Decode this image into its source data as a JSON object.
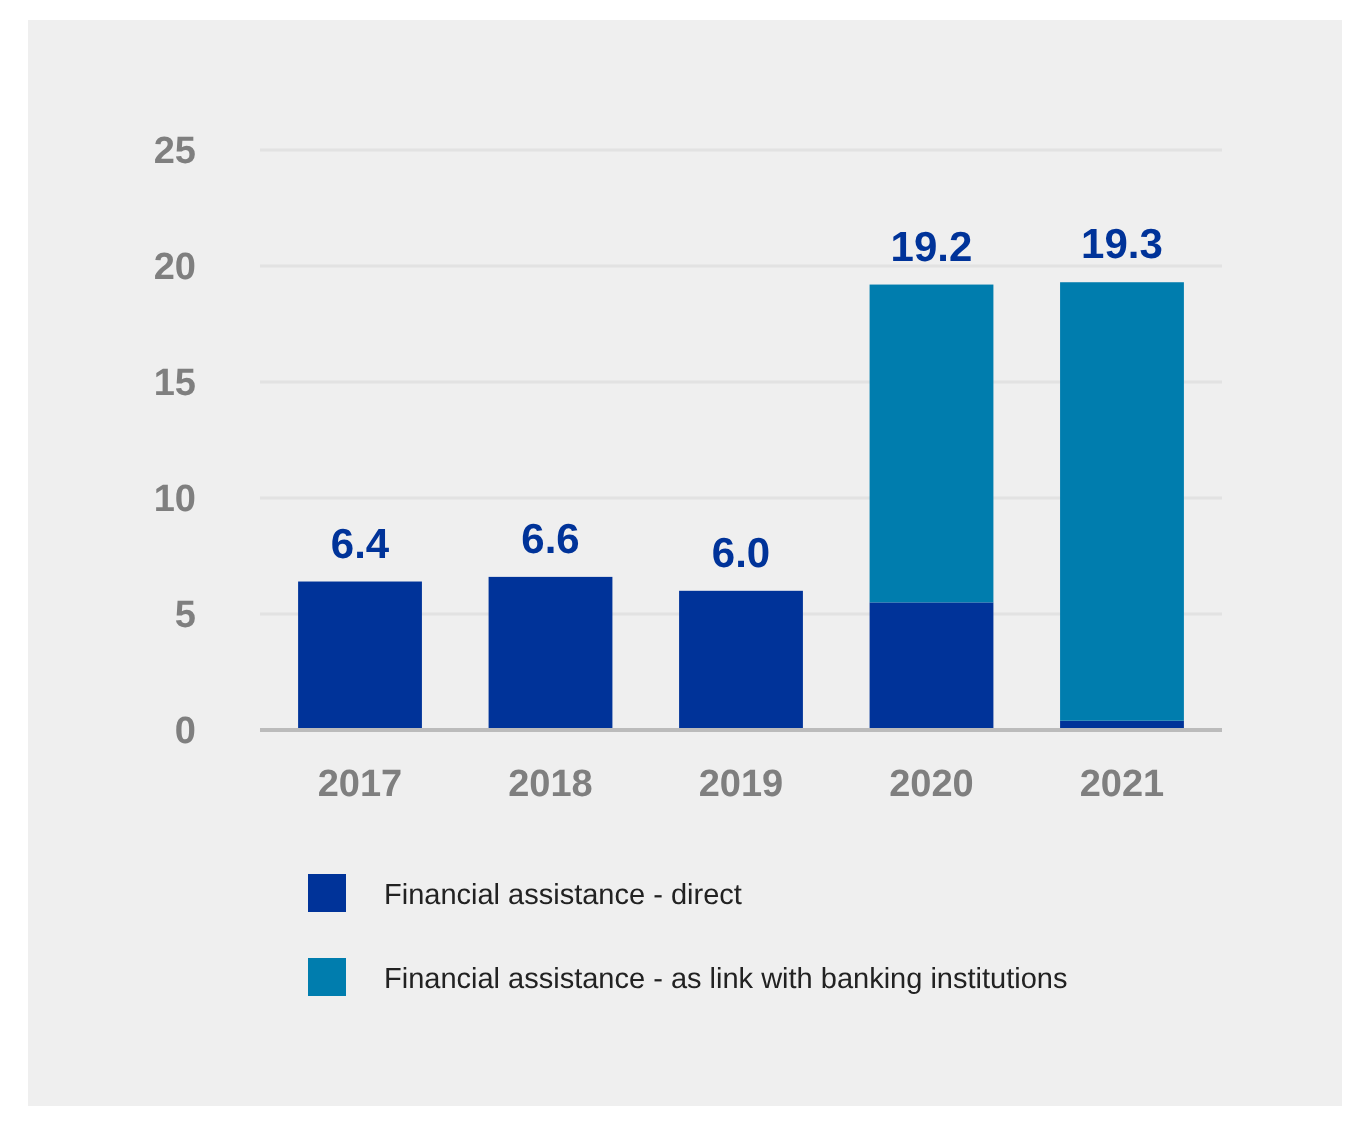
{
  "chart_data": {
    "type": "bar",
    "stacked": true,
    "categories": [
      "2017",
      "2018",
      "2019",
      "2020",
      "2021"
    ],
    "series": [
      {
        "name": "Financial assistance - direct",
        "color": "#003399",
        "values": [
          6.4,
          6.6,
          6.0,
          5.5,
          0.4
        ]
      },
      {
        "name": "Financial assistance - as link with banking institutions",
        "color": "#007dae",
        "values": [
          null,
          null,
          null,
          13.7,
          18.9
        ]
      }
    ],
    "totals": [
      "6.4",
      "6.6",
      "6.0",
      "19.2",
      "19.3"
    ],
    "ylim": [
      0,
      25
    ],
    "yticks": [
      0,
      5,
      10,
      15,
      20,
      25
    ],
    "grid": "y",
    "legend": "bottom"
  }
}
